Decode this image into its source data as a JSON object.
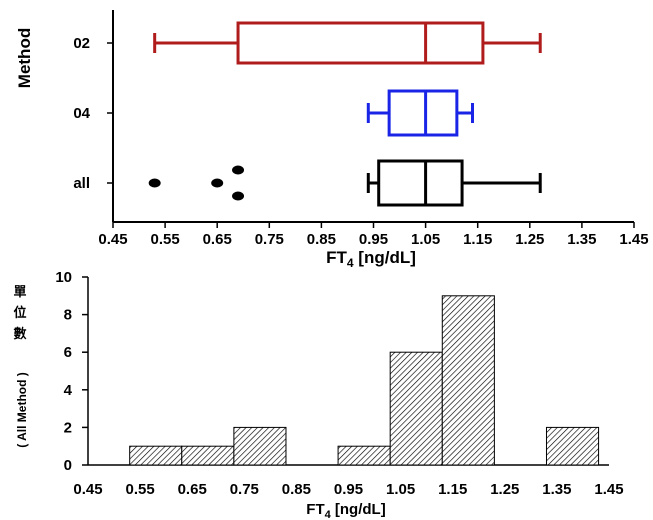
{
  "chart_data": [
    {
      "type": "box",
      "ylabel": "Method",
      "xlabel_main": "FT",
      "xlabel_sub": "4",
      "xlabel_unit": " [ng/dL]",
      "xlim": [
        0.45,
        1.45
      ],
      "xticks": [
        "0.45",
        "0.55",
        "0.65",
        "0.75",
        "0.85",
        "0.95",
        "1.05",
        "1.15",
        "1.25",
        "1.35",
        "1.45"
      ],
      "groups": [
        {
          "label": "02",
          "color": "#b01c1c",
          "whisker_low": 0.53,
          "q1": 0.69,
          "median": 1.05,
          "q3": 1.16,
          "whisker_high": 1.27,
          "outliers": []
        },
        {
          "label": "04",
          "color": "#1a24e6",
          "whisker_low": 0.94,
          "q1": 0.98,
          "median": 1.05,
          "q3": 1.11,
          "whisker_high": 1.14,
          "outliers": []
        },
        {
          "label": "all",
          "color": "#000000",
          "whisker_low": 0.94,
          "q1": 0.96,
          "median": 1.05,
          "q3": 1.12,
          "whisker_high": 1.27,
          "outliers": [
            {
              "x": 0.53,
              "row": 0
            },
            {
              "x": 0.65,
              "row": 0
            },
            {
              "x": 0.69,
              "row": 1
            },
            {
              "x": 0.69,
              "row": -1
            }
          ]
        }
      ]
    },
    {
      "type": "bar",
      "ylabel_cjk": [
        "單",
        "位",
        "數"
      ],
      "ylabel_sub": "( All Method )",
      "xlabel_main": "FT",
      "xlabel_sub": "4",
      "xlabel_unit": " [ng/dL]",
      "xlim": [
        0.45,
        1.45
      ],
      "ylim": [
        0,
        10
      ],
      "yticks": [
        "0",
        "2",
        "4",
        "6",
        "8",
        "10"
      ],
      "xticks": [
        "0.45",
        "0.55",
        "0.65",
        "0.75",
        "0.85",
        "0.95",
        "1.05",
        "1.15",
        "1.25",
        "1.35",
        "1.45"
      ],
      "bins": [
        {
          "start": 0.53,
          "end": 0.63,
          "value": 1
        },
        {
          "start": 0.63,
          "end": 0.73,
          "value": 1
        },
        {
          "start": 0.73,
          "end": 0.83,
          "value": 2
        },
        {
          "start": 0.93,
          "end": 1.03,
          "value": 1
        },
        {
          "start": 1.03,
          "end": 1.13,
          "value": 6
        },
        {
          "start": 1.13,
          "end": 1.23,
          "value": 9
        },
        {
          "start": 1.33,
          "end": 1.43,
          "value": 2
        }
      ]
    }
  ]
}
